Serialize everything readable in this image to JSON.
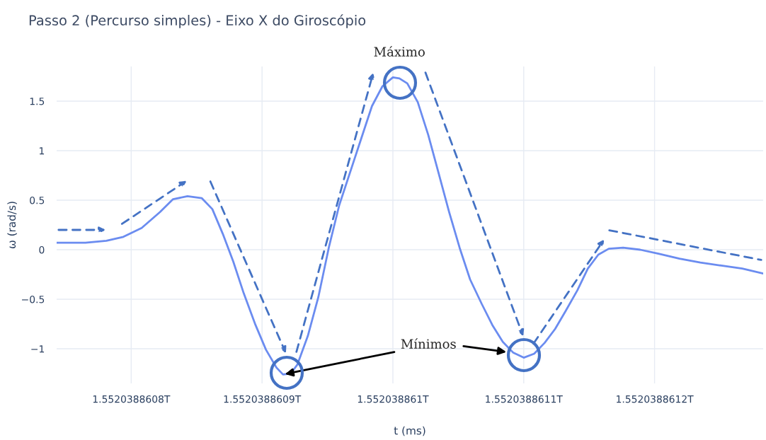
{
  "chart_data": {
    "type": "line",
    "title": "Passo 2 (Percurso simples) - Eixo X do Giroscópio",
    "xlabel": "t (ms)",
    "ylabel": "ω (rad/s)",
    "x": [
      1552038860743,
      1552038860765,
      1552038860781,
      1552038860794,
      1552038860808,
      1552038860822,
      1552038860832,
      1552038860843,
      1552038860854,
      1552038860862,
      1552038860870,
      1552038860878,
      1552038860886,
      1552038860895,
      1552038860903,
      1552038860911,
      1552038860916,
      1552038860922,
      1552038860927,
      1552038860935,
      1552038860943,
      1552038860951,
      1552038860959,
      1552038860968,
      1552038860976,
      1552038860984,
      1552038860992,
      1552038861000,
      1552038861005,
      1552038861011,
      1552038861019,
      1552038861027,
      1552038861035,
      1552038861043,
      1552038861051,
      1552038861059,
      1552038861068,
      1552038861076,
      1552038861084,
      1552038861092,
      1552038861100,
      1552038861108,
      1552038861116,
      1552038861124,
      1552038861132,
      1552038861141,
      1552038861149,
      1552038861157,
      1552038861165,
      1552038861176,
      1552038861189,
      1552038861203,
      1552038861219,
      1552038861235,
      1552038861251,
      1552038861267,
      1552038861283
    ],
    "series": [
      {
        "color": "#6b8cf0",
        "values": [
          0.07,
          0.07,
          0.09,
          0.13,
          0.22,
          0.38,
          0.51,
          0.54,
          0.52,
          0.41,
          0.16,
          -0.12,
          -0.44,
          -0.76,
          -1.01,
          -1.19,
          -1.26,
          -1.25,
          -1.16,
          -0.87,
          -0.48,
          0.02,
          0.45,
          0.81,
          1.13,
          1.45,
          1.65,
          1.74,
          1.73,
          1.68,
          1.49,
          1.16,
          0.77,
          0.38,
          0.02,
          -0.3,
          -0.55,
          -0.76,
          -0.93,
          -1.04,
          -1.09,
          -1.05,
          -0.94,
          -0.8,
          -0.62,
          -0.41,
          -0.19,
          -0.05,
          0.01,
          0.02,
          0.0,
          -0.04,
          -0.09,
          -0.13,
          -0.16,
          -0.19,
          -0.24
        ]
      }
    ],
    "xlim": [
      1552038860743,
      1552038861283
    ],
    "xticks": [
      {
        "value": 1552038860800,
        "label": "1.5520388608T"
      },
      {
        "value": 1552038860900,
        "label": "1.5520388609T"
      },
      {
        "value": 1552038861000,
        "label": "1.552038861T"
      },
      {
        "value": 1552038861100,
        "label": "1.5520388611T"
      },
      {
        "value": 1552038861200,
        "label": "1.5520388612T"
      }
    ],
    "ylim": [
      -1.35,
      1.85
    ],
    "yticks": [
      {
        "value": -1,
        "label": "−1"
      },
      {
        "value": -0.5,
        "label": "−0.5"
      },
      0,
      0.5,
      1,
      1.5
    ],
    "grid": true,
    "annotations": [
      {
        "text": "Máximo",
        "x": 1552038861005,
        "y": 1.73
      },
      {
        "text": "Mínimos",
        "x": 1552038860916,
        "y": -1.26
      }
    ]
  }
}
